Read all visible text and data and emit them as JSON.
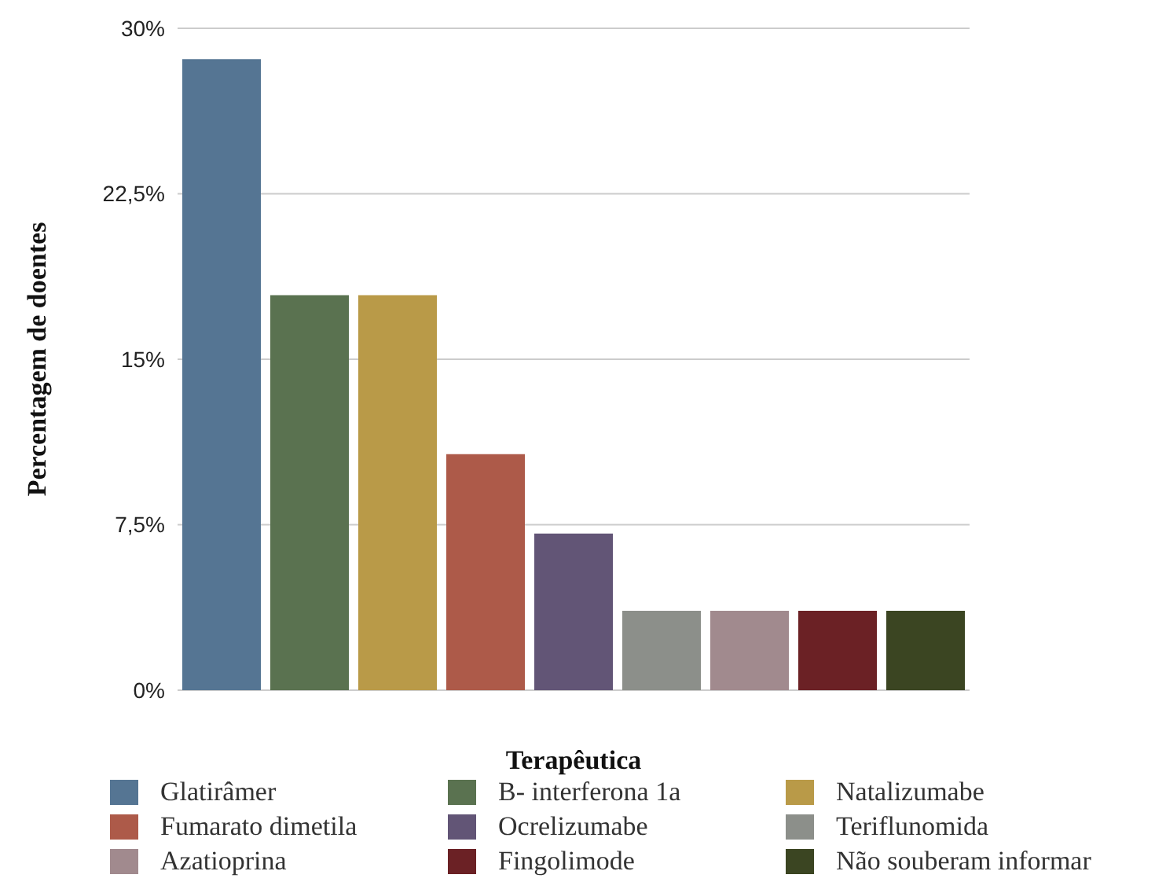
{
  "chart_data": {
    "type": "bar",
    "xlabel": "Terapêutica",
    "ylabel": "Percentagem de doentes",
    "categories": [
      null,
      null,
      null,
      null,
      null,
      null,
      null,
      null,
      null
    ],
    "series": [
      {
        "name": "Glatirâmer",
        "color": "#557593",
        "values": [
          28.6,
          null,
          null,
          null,
          null,
          null,
          null,
          null,
          null
        ]
      },
      {
        "name": "B- interferona 1a",
        "color": "#5a7250",
        "values": [
          null,
          17.9,
          null,
          null,
          null,
          null,
          null,
          null,
          null
        ]
      },
      {
        "name": "Natalizumabe",
        "color": "#b99a48",
        "values": [
          null,
          null,
          17.9,
          null,
          null,
          null,
          null,
          null,
          null
        ]
      },
      {
        "name": "Fumarato dimetila",
        "color": "#ad5a49",
        "values": [
          null,
          null,
          null,
          10.7,
          null,
          null,
          null,
          null,
          null
        ]
      },
      {
        "name": "Ocrelizumabe",
        "color": "#625576",
        "values": [
          null,
          null,
          null,
          null,
          7.1,
          null,
          null,
          null,
          null
        ]
      },
      {
        "name": "Teriflunomida",
        "color": "#8c8f8a",
        "values": [
          null,
          null,
          null,
          null,
          null,
          3.6,
          null,
          null,
          null
        ]
      },
      {
        "name": "Azatioprina",
        "color": "#a18a8e",
        "values": [
          null,
          null,
          null,
          null,
          null,
          null,
          3.6,
          null,
          null
        ]
      },
      {
        "name": "Fingolimode",
        "color": "#6b2125",
        "values": [
          null,
          null,
          null,
          null,
          null,
          null,
          null,
          3.6,
          null
        ]
      },
      {
        "name": "Não souberam informar",
        "color": "#3b4522",
        "values": [
          null,
          null,
          null,
          null,
          null,
          null,
          null,
          null,
          3.6
        ]
      }
    ],
    "stacked": true,
    "ylim": [
      0,
      30
    ],
    "yticks": [
      {
        "value": 0,
        "label": "0%"
      },
      {
        "value": 7.5,
        "label": "7,5%"
      },
      {
        "value": 15,
        "label": "15%"
      },
      {
        "value": 22.5,
        "label": "22,5%"
      },
      {
        "value": 30,
        "label": "30%"
      }
    ],
    "grid": "y",
    "tick_labels": "y",
    "legend": "bottom"
  }
}
